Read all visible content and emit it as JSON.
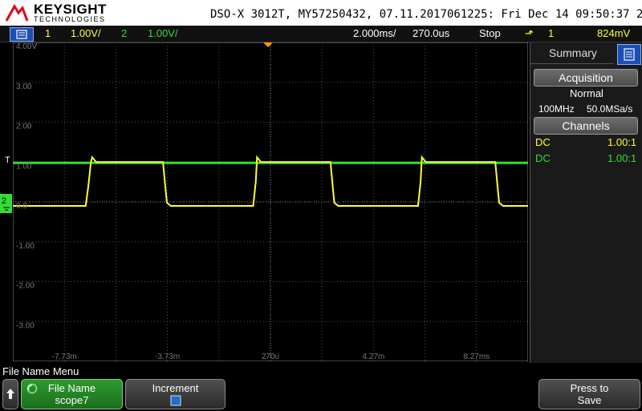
{
  "header": {
    "brand": "KEYSIGHT",
    "brand_sub": "TECHNOLOGIES",
    "scope_info": "DSO-X 3012T, MY57250432, 07.11.2017061225: Fri Dec 14 09:50:37 2018"
  },
  "status": {
    "ch1_num": "1",
    "ch1_scale": "1.00V/",
    "ch2_num": "2",
    "ch2_scale": "1.00V/",
    "timebase": "2.000ms/",
    "delay": "270.0us",
    "run_state": "Stop",
    "trigger_source": "1",
    "trigger_level": "824mV"
  },
  "graticule": {
    "y_labels": [
      "4.00V",
      "3.00",
      "2.00",
      "1.00",
      "0.0",
      "-1.00",
      "-2.00",
      "-3.00"
    ],
    "x_labels": [
      "-7.73m",
      "-3.73m",
      "270u",
      "4.27m",
      "8.27ms"
    ],
    "marker_2": "2"
  },
  "sidepanel": {
    "title": "Summary",
    "acquisition_label": "Acquisition",
    "acq_mode": "Normal",
    "bandwidth": "100MHz",
    "sample_rate": "50.0MSa/s",
    "channels_label": "Channels",
    "ch1_coupling": "DC",
    "ch1_probe": "1.00:1",
    "ch2_coupling": "DC",
    "ch2_probe": "1.00:1"
  },
  "bottom": {
    "menu_title": "File Name Menu",
    "file_name_label": "File Name",
    "file_name_value": "scope7",
    "increment_label": "Increment",
    "press_label": "Press to",
    "save_label": "Save"
  },
  "chart_data": {
    "type": "line",
    "xlabel": "",
    "ylabel": "",
    "x_unit": "ms",
    "y_unit": "V",
    "xlim": [
      -9.73,
      10.27
    ],
    "ylim": [
      -4,
      4
    ],
    "series": [
      {
        "color": "#ffff33",
        "x": [
          -9.73,
          -6.9,
          -6.8,
          -6.7,
          -6.65,
          -6.5,
          -3.9,
          -3.8,
          -3.75,
          -3.6,
          -3.5,
          -0.4,
          -0.3,
          -0.25,
          -0.1,
          -0.05,
          2.6,
          2.7,
          2.75,
          2.9,
          2.95,
          6.0,
          6.1,
          6.15,
          6.3,
          6.4,
          9.0,
          9.1,
          9.15,
          9.3,
          9.4,
          10.27
        ],
        "y": [
          -0.1,
          -0.1,
          0.4,
          1.0,
          1.12,
          1.0,
          1.0,
          0.3,
          -0.02,
          -0.1,
          -0.1,
          -0.1,
          0.5,
          1.12,
          1.0,
          1.0,
          1.0,
          0.3,
          -0.02,
          -0.1,
          -0.1,
          -0.1,
          0.5,
          1.12,
          1.0,
          1.0,
          1.0,
          0.3,
          -0.02,
          -0.1,
          -0.1,
          -0.1
        ]
      },
      {
        "color": "#33dd33",
        "x": [
          -9.73,
          10.27
        ],
        "y": [
          0.98,
          0.98
        ]
      }
    ]
  }
}
